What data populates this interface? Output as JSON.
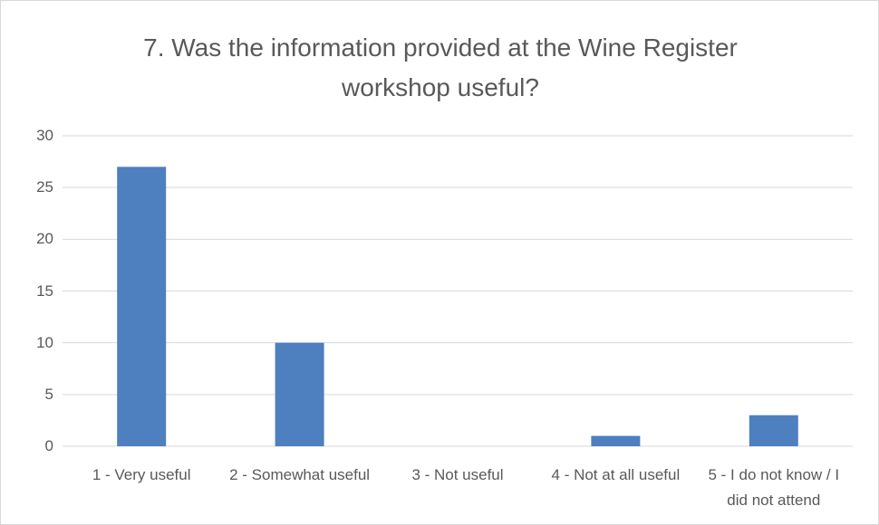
{
  "chart_data": {
    "type": "bar",
    "title": "7. Was the information provided at the Wine Register workshop useful?",
    "categories": [
      "1 - Very useful",
      "2 - Somewhat useful",
      "3 - Not useful",
      "4 - Not at all useful",
      "5 - I do not know / I did not attend"
    ],
    "values": [
      27,
      10,
      0,
      1,
      3
    ],
    "color": "#4e7fbf",
    "ylim": [
      0,
      30
    ],
    "yticks": [
      0,
      5,
      10,
      15,
      20,
      25,
      30
    ],
    "grid": true
  }
}
